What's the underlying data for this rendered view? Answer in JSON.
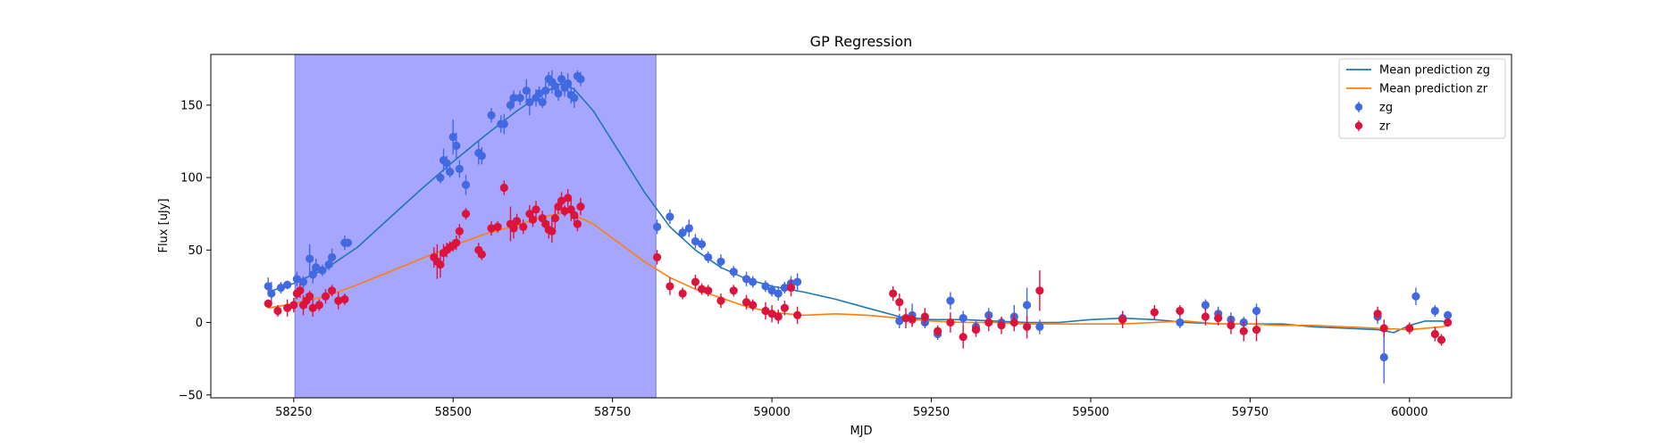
{
  "chart_data": {
    "type": "scatter",
    "title": "GP Regression",
    "xlabel": "MJD",
    "ylabel": "Flux [uJy]",
    "xlim": [
      58120,
      60160
    ],
    "ylim": [
      -52,
      185
    ],
    "xticks": [
      58250,
      58500,
      58750,
      59000,
      59250,
      59500,
      59750,
      60000
    ],
    "yticks": [
      -50,
      0,
      50,
      100,
      150
    ],
    "grid": false,
    "legend_position": "top-right",
    "shaded_region": {
      "x_start": 58252,
      "x_end": 58818,
      "color": "#a6a6ff"
    },
    "colors": {
      "zg_points": "#4169e1",
      "zr_points": "#dc143c",
      "zg_line": "#1f77b4",
      "zr_line": "#ff7f0e"
    },
    "legend": [
      {
        "label": "Mean prediction zg",
        "kind": "line",
        "color": "#1f77b4"
      },
      {
        "label": "Mean prediction zr",
        "kind": "line",
        "color": "#ff7f0e"
      },
      {
        "label": "zg",
        "kind": "errorbar",
        "color": "#4169e1"
      },
      {
        "label": "zr",
        "kind": "errorbar",
        "color": "#dc143c"
      }
    ],
    "lines": [
      {
        "name": "Mean prediction zg",
        "color": "#1f77b4",
        "x": [
          58210,
          58250,
          58300,
          58350,
          58400,
          58450,
          58500,
          58550,
          58600,
          58640,
          58670,
          58690,
          58720,
          58760,
          58800,
          58840,
          58880,
          58920,
          58960,
          59000,
          59050,
          59100,
          59150,
          59200,
          59250,
          59300,
          59350,
          59400,
          59450,
          59500,
          59550,
          59600,
          59650,
          59700,
          59750,
          59800,
          59850,
          59900,
          59950,
          59975,
          60000,
          60025,
          60050,
          60060
        ],
        "y": [
          21,
          27,
          37,
          52,
          72,
          92,
          111,
          129,
          146,
          158,
          165,
          161,
          146,
          118,
          90,
          66,
          50,
          38,
          30,
          25,
          21,
          16,
          10,
          4,
          2,
          2,
          1,
          0,
          0,
          2,
          3,
          2,
          0,
          -1,
          -1,
          -1,
          -3,
          -4,
          -5,
          -7,
          -2,
          1,
          1,
          0
        ]
      },
      {
        "name": "Mean prediction zr",
        "color": "#ff7f0e",
        "x": [
          58210,
          58250,
          58300,
          58350,
          58400,
          58450,
          58500,
          58550,
          58600,
          58640,
          58680,
          58720,
          58760,
          58800,
          58840,
          58880,
          58920,
          58960,
          59000,
          59050,
          59100,
          59150,
          59200,
          59250,
          59300,
          59350,
          59400,
          59450,
          59500,
          59550,
          59600,
          59650,
          59700,
          59750,
          59800,
          59850,
          59900,
          59950,
          60000,
          60050,
          60060
        ],
        "y": [
          10,
          13,
          18,
          26,
          35,
          44,
          53,
          61,
          67,
          73,
          76,
          68,
          55,
          42,
          31,
          23,
          17,
          11,
          7,
          5,
          6,
          5,
          3,
          1,
          0,
          0,
          -1,
          -1,
          -1,
          -1,
          0,
          1,
          -1,
          -1,
          -2,
          -2,
          -3,
          -4,
          -5,
          -3,
          -2
        ]
      }
    ],
    "series": [
      {
        "name": "zg",
        "color": "#4169e1",
        "x": [
          58210,
          58215,
          58230,
          58240,
          58255,
          58265,
          58275,
          58280,
          58285,
          58295,
          58305,
          58310,
          58330,
          58335,
          58480,
          58485,
          58490,
          58495,
          58500,
          58505,
          58510,
          58520,
          58540,
          58545,
          58560,
          58575,
          58580,
          58590,
          58595,
          58605,
          58615,
          58620,
          58630,
          58635,
          58640,
          58645,
          58650,
          58655,
          58660,
          58665,
          58670,
          58675,
          58680,
          58685,
          58690,
          58695,
          58700,
          58820,
          58840,
          58860,
          58870,
          58880,
          58890,
          58900,
          58920,
          58940,
          58960,
          58970,
          58990,
          59000,
          59010,
          59020,
          59030,
          59040,
          59200,
          59220,
          59240,
          59260,
          59280,
          59300,
          59320,
          59340,
          59360,
          59380,
          59400,
          59420,
          59550,
          59640,
          59680,
          59700,
          59720,
          59740,
          59760,
          59950,
          59960,
          60010,
          60040,
          60060
        ],
        "y": [
          25,
          20,
          24,
          26,
          30,
          28,
          44,
          33,
          38,
          36,
          40,
          45,
          55,
          55,
          100,
          112,
          110,
          104,
          128,
          122,
          106,
          95,
          117,
          115,
          143,
          137,
          137,
          150,
          155,
          155,
          160,
          152,
          155,
          158,
          152,
          160,
          168,
          166,
          163,
          158,
          168,
          162,
          165,
          157,
          155,
          170,
          168,
          66,
          73,
          62,
          65,
          56,
          54,
          45,
          42,
          35,
          30,
          28,
          25,
          22,
          20,
          24,
          27,
          28,
          1,
          5,
          0,
          -8,
          15,
          3,
          -3,
          5,
          0,
          4,
          12,
          -3,
          3,
          0,
          12,
          6,
          2,
          0,
          8,
          4,
          -24,
          18,
          8,
          5
        ],
        "err": [
          6,
          8,
          4,
          3,
          5,
          4,
          10,
          6,
          6,
          4,
          4,
          6,
          5,
          3,
          4,
          8,
          5,
          4,
          12,
          9,
          6,
          7,
          8,
          6,
          5,
          6,
          7,
          4,
          5,
          5,
          8,
          9,
          6,
          5,
          4,
          6,
          5,
          8,
          4,
          5,
          5,
          6,
          7,
          6,
          7,
          4,
          5,
          5,
          5,
          4,
          6,
          5,
          4,
          4,
          5,
          4,
          5,
          4,
          4,
          4,
          5,
          4,
          5,
          6,
          5,
          8,
          4,
          4,
          6,
          5,
          5,
          5,
          4,
          8,
          12,
          5,
          5,
          4,
          4,
          5,
          5,
          4,
          5,
          5,
          18,
          6,
          4,
          3
        ]
      },
      {
        "name": "zr",
        "color": "#dc143c",
        "x": [
          58210,
          58225,
          58240,
          58250,
          58255,
          58260,
          58265,
          58270,
          58275,
          58280,
          58290,
          58300,
          58310,
          58320,
          58330,
          58470,
          58475,
          58480,
          58485,
          58490,
          58495,
          58500,
          58505,
          58510,
          58520,
          58540,
          58545,
          58560,
          58570,
          58580,
          58590,
          58595,
          58600,
          58610,
          58620,
          58625,
          58630,
          58640,
          58645,
          58650,
          58655,
          58660,
          58665,
          58670,
          58675,
          58680,
          58685,
          58690,
          58695,
          58700,
          58820,
          58840,
          58860,
          58880,
          58890,
          58900,
          58920,
          58940,
          58960,
          58970,
          58990,
          59000,
          59010,
          59020,
          59030,
          59040,
          59190,
          59200,
          59210,
          59220,
          59240,
          59260,
          59280,
          59300,
          59320,
          59340,
          59360,
          59380,
          59400,
          59420,
          59550,
          59600,
          59640,
          59680,
          59700,
          59720,
          59740,
          59760,
          59950,
          59960,
          60000,
          60040,
          60050,
          60060
        ],
        "y": [
          13,
          8,
          10,
          12,
          20,
          22,
          12,
          15,
          18,
          10,
          12,
          18,
          22,
          15,
          16,
          45,
          42,
          40,
          48,
          50,
          52,
          53,
          55,
          63,
          75,
          50,
          47,
          65,
          66,
          93,
          68,
          65,
          70,
          66,
          75,
          71,
          78,
          72,
          68,
          64,
          63,
          72,
          80,
          84,
          77,
          86,
          78,
          74,
          68,
          80,
          45,
          25,
          20,
          28,
          23,
          22,
          15,
          22,
          14,
          12,
          8,
          6,
          4,
          10,
          24,
          5,
          20,
          14,
          3,
          2,
          4,
          -6,
          0,
          -10,
          -5,
          0,
          -2,
          0,
          -3,
          22,
          2,
          7,
          8,
          4,
          3,
          -2,
          -6,
          -5,
          6,
          -4,
          -4,
          -8,
          -12,
          0
        ],
        "err": [
          3,
          4,
          6,
          5,
          4,
          5,
          7,
          5,
          4,
          6,
          4,
          5,
          4,
          6,
          4,
          7,
          12,
          9,
          6,
          5,
          4,
          4,
          5,
          5,
          4,
          5,
          4,
          5,
          4,
          5,
          12,
          7,
          5,
          5,
          6,
          5,
          6,
          5,
          4,
          6,
          8,
          7,
          5,
          6,
          4,
          6,
          8,
          5,
          5,
          6,
          5,
          6,
          4,
          5,
          4,
          4,
          5,
          4,
          5,
          4,
          6,
          6,
          5,
          5,
          6,
          6,
          5,
          6,
          7,
          5,
          6,
          4,
          7,
          8,
          5,
          6,
          6,
          6,
          8,
          14,
          6,
          5,
          4,
          6,
          5,
          6,
          7,
          8,
          5,
          6,
          4,
          5,
          4,
          3
        ]
      }
    ]
  }
}
